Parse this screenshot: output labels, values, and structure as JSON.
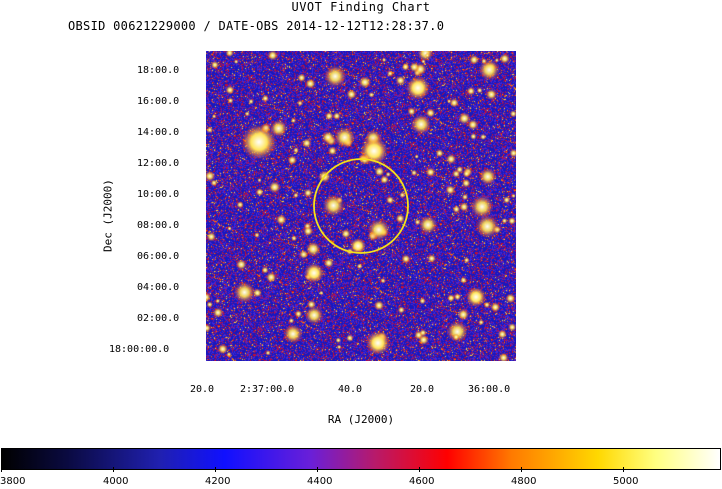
{
  "header": {
    "title": "UVOT Finding Chart",
    "subtitle": "OBSID 00621229000 / DATE-OBS 2014-12-12T12:28:37.0"
  },
  "axes": {
    "dec_title": "Dec (J2000)",
    "ra_title": "RA (J2000)",
    "dec_ticks": [
      "18:00.0",
      "16:00.0",
      "14:00.0",
      "12:00.0",
      "10:00.0",
      "08:00.0",
      "06:00.0",
      "04:00.0",
      "02:00.0",
      "18:00:00.0"
    ],
    "ra_ticks": [
      "20.0",
      "2:37:00.0",
      "40.0",
      "20.0",
      "36:00.0"
    ]
  },
  "colorbar": {
    "ticks": [
      "3800",
      "4000",
      "4200",
      "4400",
      "4600",
      "4800",
      "5000"
    ]
  },
  "colors": {
    "circle": "#f5e21a",
    "background_noise": "#2020c8"
  }
}
